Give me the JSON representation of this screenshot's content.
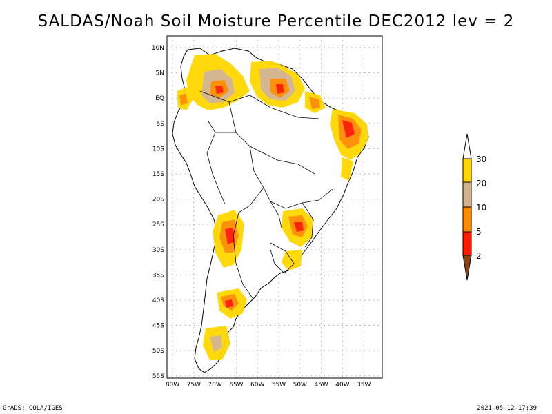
{
  "title": "SALDAS/Noah Soil Moisture Percentile DEC2012 lev = 2",
  "lat_labels": [
    "10N",
    "5N",
    "EQ",
    "5S",
    "10S",
    "15S",
    "20S",
    "25S",
    "30S",
    "35S",
    "40S",
    "45S",
    "50S",
    "55S"
  ],
  "lon_labels": [
    "80W",
    "75W",
    "70W",
    "65W",
    "60W",
    "55W",
    "50W",
    "45W",
    "40W",
    "35W"
  ],
  "colorbar": {
    "levels": [
      "2",
      "5",
      "10",
      "20",
      "30"
    ],
    "colors": {
      "lt2": "#8b4513",
      "2_5": "#ff1a00",
      "5_10": "#ff8c00",
      "10_20": "#d2b48c",
      "20_30": "#ffd700",
      "gt30": "#ffffff"
    }
  },
  "footer": {
    "left": "GrADS: COLA/IGES",
    "right": "2021-05-12-17:39"
  }
}
